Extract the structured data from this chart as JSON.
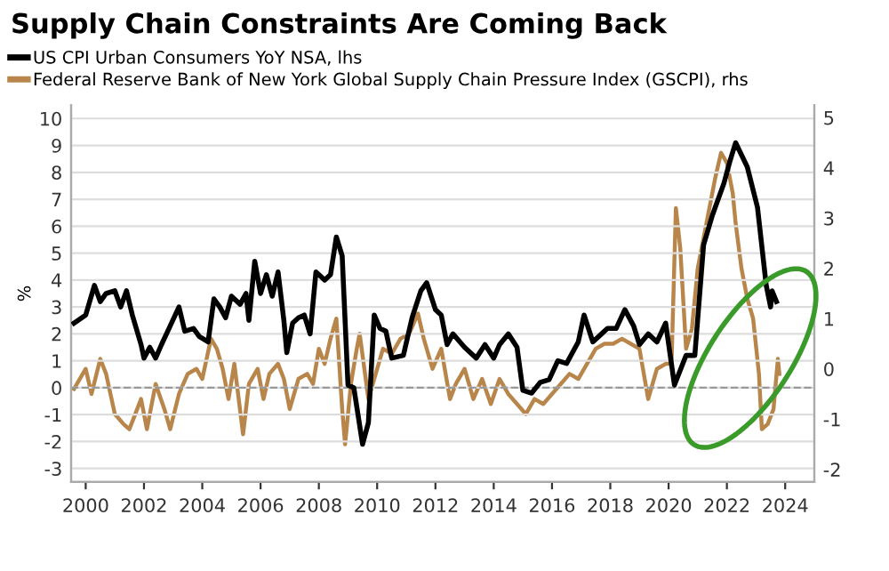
{
  "chart_data": {
    "type": "line",
    "title": "Supply Chain Constraints Are Coming Back",
    "ylabel": "%",
    "xlim": [
      1999.5,
      2025.0
    ],
    "xticks": [
      2000,
      2002,
      2004,
      2006,
      2008,
      2010,
      2012,
      2014,
      2016,
      2018,
      2020,
      2022,
      2024
    ],
    "ylim": [
      -3.5,
      10.5
    ],
    "yticks": [
      -3,
      -2,
      -1,
      0,
      1,
      2,
      3,
      4,
      5,
      6,
      7,
      8,
      9,
      10
    ],
    "y2lim": [
      -2.25,
      5.25
    ],
    "y2ticks": [
      -2,
      -1,
      0,
      1,
      2,
      3,
      4,
      5
    ],
    "grid": "y",
    "legend": "top left",
    "ref_lines": [
      {
        "axis": "y",
        "value": 0,
        "label": null,
        "color": "#999999",
        "line_style": "dashed"
      }
    ],
    "series": [
      {
        "name": "US CPI Urban Consumers YoY NSA, lhs",
        "color": "#000000",
        "x": [
          1999.6,
          2000.0,
          2000.3,
          2000.5,
          2000.7,
          2001.0,
          2001.2,
          2001.4,
          2001.6,
          2001.9,
          2002.0,
          2002.2,
          2002.4,
          2002.6,
          2002.9,
          2003.2,
          2003.4,
          2003.7,
          2003.9,
          2004.2,
          2004.4,
          2004.6,
          2004.8,
          2005.0,
          2005.3,
          2005.5,
          2005.6,
          2005.8,
          2006.0,
          2006.2,
          2006.4,
          2006.6,
          2006.8,
          2006.9,
          2007.1,
          2007.3,
          2007.5,
          2007.7,
          2007.9,
          2008.2,
          2008.4,
          2008.6,
          2008.8,
          2009.0,
          2009.2,
          2009.5,
          2009.7,
          2009.9,
          2010.1,
          2010.3,
          2010.5,
          2010.9,
          2011.2,
          2011.5,
          2011.7,
          2012.0,
          2012.2,
          2012.4,
          2012.6,
          2013.0,
          2013.4,
          2013.7,
          2014.0,
          2014.2,
          2014.5,
          2014.8,
          2015.0,
          2015.3,
          2015.6,
          2015.9,
          2016.2,
          2016.5,
          2016.9,
          2017.1,
          2017.4,
          2017.7,
          2017.9,
          2018.2,
          2018.5,
          2018.8,
          2019.0,
          2019.3,
          2019.6,
          2019.9,
          2020.2,
          2020.6,
          2020.9,
          2021.2,
          2021.5,
          2021.9,
          2022.1,
          2022.3,
          2022.7,
          2023.05,
          2023.35,
          2023.5,
          2023.55,
          2023.7
        ],
        "values": [
          2.4,
          2.7,
          3.8,
          3.2,
          3.5,
          3.6,
          3.0,
          3.6,
          2.7,
          1.6,
          1.1,
          1.5,
          1.1,
          1.6,
          2.3,
          3.0,
          2.1,
          2.2,
          1.9,
          1.7,
          3.3,
          3.0,
          2.6,
          3.4,
          3.1,
          3.5,
          2.5,
          4.7,
          3.5,
          4.2,
          3.4,
          4.3,
          2.5,
          1.3,
          2.4,
          2.6,
          2.7,
          2.0,
          4.3,
          4.0,
          4.2,
          5.6,
          4.9,
          0.1,
          0.0,
          -2.1,
          -1.3,
          2.7,
          2.2,
          2.1,
          1.1,
          1.2,
          2.6,
          3.6,
          3.9,
          2.9,
          2.7,
          1.6,
          2.0,
          1.5,
          1.1,
          1.6,
          1.1,
          1.6,
          2.0,
          1.5,
          -0.1,
          -0.2,
          0.2,
          0.3,
          1.0,
          0.9,
          1.7,
          2.7,
          1.7,
          2.0,
          2.2,
          2.2,
          2.9,
          2.3,
          1.6,
          2.0,
          1.7,
          2.4,
          0.1,
          1.2,
          1.2,
          5.3,
          6.4,
          7.6,
          8.4,
          9.1,
          8.2,
          6.7,
          3.8,
          3.0,
          3.6,
          3.2
        ]
      },
      {
        "name": "Federal Reserve Bank of New York Global Supply Chain Pressure Index (GSCPI), rhs",
        "color": "#b8864b",
        "axis": "y2",
        "x": [
          1999.6,
          2000.0,
          2000.2,
          2000.5,
          2000.7,
          2001.0,
          2001.3,
          2001.5,
          2001.7,
          2001.9,
          2002.1,
          2002.4,
          2002.7,
          2002.9,
          2003.2,
          2003.5,
          2003.8,
          2004.0,
          2004.3,
          2004.5,
          2004.7,
          2004.9,
          2005.1,
          2005.4,
          2005.6,
          2005.9,
          2006.1,
          2006.3,
          2006.6,
          2006.8,
          2007.0,
          2007.3,
          2007.6,
          2007.8,
          2008.0,
          2008.2,
          2008.4,
          2008.6,
          2008.8,
          2008.9,
          2009.1,
          2009.3,
          2009.4,
          2009.7,
          2009.9,
          2010.2,
          2010.5,
          2010.8,
          2011.1,
          2011.4,
          2011.6,
          2011.9,
          2012.2,
          2012.5,
          2012.7,
          2013.0,
          2013.3,
          2013.6,
          2013.9,
          2014.2,
          2014.5,
          2014.8,
          2015.1,
          2015.4,
          2015.7,
          2016.0,
          2016.3,
          2016.6,
          2016.9,
          2017.2,
          2017.5,
          2017.8,
          2018.1,
          2018.4,
          2018.7,
          2019.0,
          2019.3,
          2019.6,
          2019.9,
          2020.1,
          2020.25,
          2020.4,
          2020.6,
          2020.8,
          2021.0,
          2021.3,
          2021.6,
          2021.8,
          2022.0,
          2022.2,
          2022.3,
          2022.5,
          2022.7,
          2022.9,
          2023.1,
          2023.2,
          2023.4,
          2023.6,
          2023.75,
          2023.8
        ],
        "values": [
          -0.4,
          0.0,
          -0.5,
          0.2,
          -0.1,
          -0.9,
          -1.1,
          -1.2,
          -0.9,
          -0.6,
          -1.2,
          -0.3,
          -0.8,
          -1.2,
          -0.5,
          -0.1,
          0.0,
          -0.2,
          0.6,
          0.4,
          0.0,
          -0.6,
          0.1,
          -1.3,
          -0.3,
          0.0,
          -0.6,
          -0.1,
          0.1,
          -0.2,
          -0.8,
          -0.2,
          -0.1,
          -0.3,
          0.4,
          0.1,
          0.6,
          1.0,
          -0.8,
          -1.5,
          -0.3,
          0.4,
          0.7,
          -0.6,
          -0.2,
          0.4,
          0.3,
          0.6,
          0.7,
          1.1,
          0.6,
          0.0,
          0.4,
          -0.6,
          -0.3,
          0.0,
          -0.6,
          -0.2,
          -0.7,
          -0.2,
          -0.5,
          -0.7,
          -0.9,
          -0.6,
          -0.7,
          -0.5,
          -0.3,
          -0.1,
          -0.2,
          0.1,
          0.4,
          0.5,
          0.5,
          0.6,
          0.5,
          0.4,
          -0.6,
          0.0,
          0.1,
          0.1,
          3.2,
          2.4,
          0.4,
          0.8,
          2.0,
          2.9,
          3.8,
          4.3,
          4.1,
          3.5,
          2.9,
          2.0,
          1.4,
          1.0,
          -0.1,
          -1.2,
          -1.1,
          -0.8,
          0.2,
          -0.1
        ]
      }
    ]
  }
}
